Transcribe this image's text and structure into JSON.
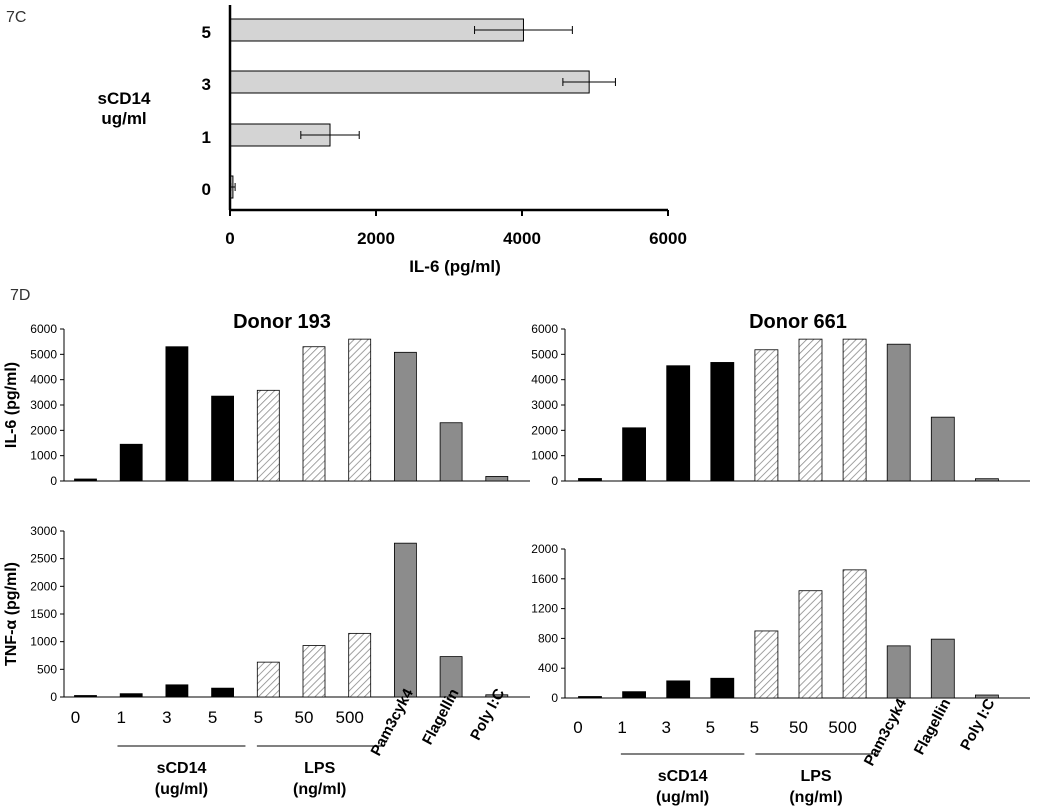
{
  "panel_labels": {
    "c": "7C",
    "d": "7D"
  },
  "colors": {
    "light_bar": "#d4d4d4",
    "black_bar": "#000000",
    "gray_bar": "#8c8c8c",
    "hatch": "#999999",
    "axis": "#000000"
  },
  "chart_data": [
    {
      "id": "7C",
      "type": "bar",
      "orientation": "horizontal",
      "title": "",
      "xlabel": "IL-6 (pg/ml)",
      "ylabel": "sCD14\nug/ml",
      "categories": [
        "5",
        "3",
        "1",
        "0"
      ],
      "values": [
        4020,
        4920,
        1370,
        40
      ],
      "errors": [
        670,
        360,
        400,
        30
      ],
      "xlim": [
        0,
        6000
      ],
      "xticks": [
        0,
        2000,
        4000,
        6000
      ]
    },
    {
      "id": "7D-IL6-193",
      "type": "bar",
      "title": "Donor 193",
      "ylabel": "IL-6 (pg/ml)",
      "ylim": [
        0,
        6000
      ],
      "yticks": [
        0,
        1000,
        2000,
        3000,
        4000,
        5000,
        6000
      ],
      "values": [
        60,
        1450,
        5300,
        3350,
        3580,
        5300,
        5600,
        5080,
        2300,
        180
      ],
      "fills": [
        "black",
        "black",
        "black",
        "black",
        "hatch",
        "hatch",
        "hatch",
        "gray",
        "gray",
        "gray"
      ]
    },
    {
      "id": "7D-IL6-661",
      "type": "bar",
      "title": "Donor 661",
      "ylabel": "",
      "ylim": [
        0,
        6000
      ],
      "yticks": [
        0,
        1000,
        2000,
        3000,
        4000,
        5000,
        6000
      ],
      "values": [
        100,
        2100,
        4550,
        4680,
        5180,
        5600,
        5600,
        5400,
        2520,
        90
      ],
      "fills": [
        "black",
        "black",
        "black",
        "black",
        "hatch",
        "hatch",
        "hatch",
        "gray",
        "gray",
        "gray"
      ]
    },
    {
      "id": "7D-TNF-193",
      "type": "bar",
      "title": "",
      "ylabel": "TNF-α (pg/ml)",
      "ylim": [
        0,
        3000
      ],
      "yticks": [
        0,
        500,
        1000,
        1500,
        2000,
        2500,
        3000
      ],
      "values": [
        0,
        60,
        220,
        160,
        630,
        930,
        1150,
        2780,
        730,
        40
      ],
      "fills": [
        "black",
        "black",
        "black",
        "black",
        "hatch",
        "hatch",
        "hatch",
        "gray",
        "gray",
        "gray"
      ],
      "tick_labels": [
        "0",
        "1",
        "3",
        "5",
        "5",
        "50",
        "500",
        "Pam3cyk4",
        "Flagellin",
        "Poly I:C"
      ],
      "groups": [
        {
          "line1": "sCD14",
          "line2": "(ug/ml)"
        },
        {
          "line1": "LPS",
          "line2": "(ng/ml)"
        }
      ]
    },
    {
      "id": "7D-TNF-661",
      "type": "bar",
      "title": "",
      "ylabel": "",
      "ylim": [
        0,
        2000
      ],
      "yticks": [
        0,
        400,
        800,
        1200,
        1600,
        2000
      ],
      "values": [
        0,
        85,
        230,
        265,
        900,
        1440,
        1720,
        700,
        790,
        40
      ],
      "fills": [
        "black",
        "black",
        "black",
        "black",
        "hatch",
        "hatch",
        "hatch",
        "gray",
        "gray",
        "gray"
      ],
      "tick_labels": [
        "0",
        "1",
        "3",
        "5",
        "5",
        "50",
        "500",
        "Pam3cyk4",
        "Flagellin",
        "Poly I:C"
      ],
      "groups": [
        {
          "line1": "sCD14",
          "line2": "(ug/ml)"
        },
        {
          "line1": "LPS",
          "line2": "(ng/ml)"
        }
      ]
    }
  ]
}
